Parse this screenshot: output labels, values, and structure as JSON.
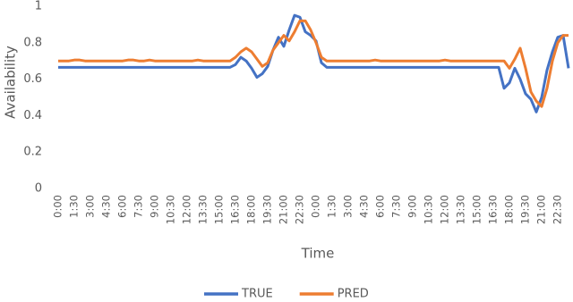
{
  "chart_data": {
    "type": "line",
    "x_label": "Time",
    "y_label": "Availability",
    "categories": [
      "0:00",
      null,
      null,
      "1:30",
      null,
      null,
      "3:00",
      null,
      null,
      "4:30",
      null,
      null,
      "6:00",
      null,
      null,
      "7:30",
      null,
      null,
      "9:00",
      null,
      null,
      "10:30",
      null,
      null,
      "12:00",
      null,
      null,
      "13:30",
      null,
      null,
      "15:00",
      null,
      null,
      "16:30",
      null,
      null,
      "18:00",
      null,
      null,
      "19:30",
      null,
      null,
      "21:00",
      null,
      null,
      "22:30",
      null,
      null,
      "0:00",
      null,
      null,
      "1:30",
      null,
      null,
      "3:00",
      null,
      null,
      "4:30",
      null,
      null,
      "6:00",
      null,
      null,
      "7:30",
      null,
      null,
      "9:00",
      null,
      null,
      "10:30",
      null,
      null,
      "12:00",
      null,
      null,
      "13:30",
      null,
      null,
      "15:00",
      null,
      null,
      "16:30",
      null,
      null,
      "18:00",
      null,
      null,
      "19:30",
      null,
      null,
      "21:00",
      null,
      null,
      "22:30",
      null,
      null
    ],
    "series": [
      {
        "name": "TRUE",
        "color": "#4472c4",
        "values": [
          0.665,
          0.665,
          0.665,
          0.665,
          0.665,
          0.665,
          0.665,
          0.665,
          0.665,
          0.665,
          0.665,
          0.665,
          0.665,
          0.665,
          0.665,
          0.665,
          0.665,
          0.665,
          0.665,
          0.665,
          0.665,
          0.665,
          0.665,
          0.665,
          0.665,
          0.665,
          0.665,
          0.665,
          0.665,
          0.665,
          0.665,
          0.665,
          0.665,
          0.68,
          0.72,
          0.7,
          0.66,
          0.61,
          0.63,
          0.67,
          0.76,
          0.83,
          0.78,
          0.87,
          0.95,
          0.94,
          0.86,
          0.84,
          0.81,
          0.69,
          0.665,
          0.665,
          0.665,
          0.665,
          0.665,
          0.665,
          0.665,
          0.665,
          0.665,
          0.665,
          0.665,
          0.665,
          0.665,
          0.665,
          0.665,
          0.665,
          0.665,
          0.665,
          0.665,
          0.665,
          0.665,
          0.665,
          0.665,
          0.665,
          0.665,
          0.665,
          0.665,
          0.665,
          0.665,
          0.665,
          0.665,
          0.665,
          0.665,
          0.55,
          0.58,
          0.66,
          0.6,
          0.52,
          0.49,
          0.42,
          0.5,
          0.65,
          0.75,
          0.83,
          0.84,
          0.66
        ]
      },
      {
        "name": "PRED",
        "color": "#ed7d31",
        "values": [
          0.7,
          0.7,
          0.7,
          0.705,
          0.705,
          0.7,
          0.7,
          0.7,
          0.7,
          0.7,
          0.7,
          0.7,
          0.7,
          0.705,
          0.705,
          0.7,
          0.7,
          0.705,
          0.7,
          0.7,
          0.7,
          0.7,
          0.7,
          0.7,
          0.7,
          0.7,
          0.705,
          0.7,
          0.7,
          0.7,
          0.7,
          0.7,
          0.7,
          0.72,
          0.75,
          0.77,
          0.75,
          0.71,
          0.67,
          0.69,
          0.76,
          0.8,
          0.84,
          0.81,
          0.86,
          0.92,
          0.92,
          0.87,
          0.8,
          0.72,
          0.7,
          0.7,
          0.7,
          0.7,
          0.7,
          0.7,
          0.7,
          0.7,
          0.7,
          0.705,
          0.7,
          0.7,
          0.7,
          0.7,
          0.7,
          0.7,
          0.7,
          0.7,
          0.7,
          0.7,
          0.7,
          0.7,
          0.705,
          0.7,
          0.7,
          0.7,
          0.7,
          0.7,
          0.7,
          0.7,
          0.7,
          0.7,
          0.7,
          0.7,
          0.66,
          0.71,
          0.77,
          0.66,
          0.53,
          0.48,
          0.45,
          0.55,
          0.7,
          0.8,
          0.84,
          0.84
        ]
      }
    ],
    "ylim": [
      0,
      1
    ],
    "yticks": [
      0,
      0.2,
      0.4,
      0.6,
      0.8,
      1
    ],
    "grid": false,
    "legend": "bottom"
  }
}
